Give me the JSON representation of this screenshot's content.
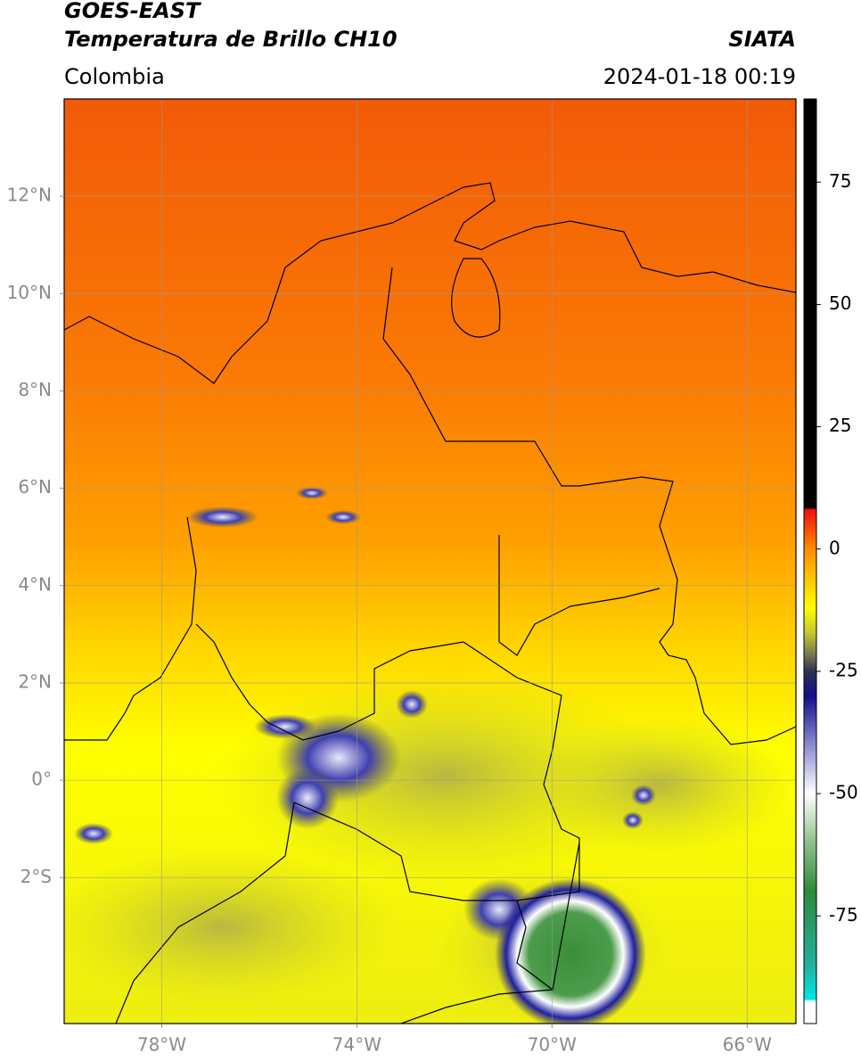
{
  "header": {
    "title_line1": "GOES-EAST",
    "title_line2": "Temperatura de Brillo CH10",
    "region": "Colombia",
    "source": "SIATA",
    "datetime": "2024-01-18 00:19"
  },
  "map": {
    "xlim": [
      -80,
      -65
    ],
    "ylim": [
      -5,
      14
    ],
    "xticks": [
      {
        "value": -78,
        "label": "78°W"
      },
      {
        "value": -74,
        "label": "74°W"
      },
      {
        "value": -70,
        "label": "70°W"
      },
      {
        "value": -66,
        "label": "66°W"
      }
    ],
    "yticks": [
      {
        "value": 12,
        "label": "12°N"
      },
      {
        "value": 10,
        "label": "10°N"
      },
      {
        "value": 8,
        "label": "8°N"
      },
      {
        "value": 6,
        "label": "6°N"
      },
      {
        "value": 4,
        "label": "4°N"
      },
      {
        "value": 2,
        "label": "2°N"
      },
      {
        "value": 0,
        "label": "0°"
      },
      {
        "value": -2,
        "label": "2°S"
      }
    ],
    "grid": true
  },
  "colorbar": {
    "lim": [
      -97,
      92
    ],
    "ticks": [
      75,
      50,
      25,
      0,
      -25,
      -50,
      -75
    ],
    "stops": [
      {
        "value": -97,
        "color": "#ffffff"
      },
      {
        "value": -92.5,
        "color": "#ffffff"
      },
      {
        "value": -92,
        "color": "#00e5e5"
      },
      {
        "value": -85,
        "color": "#22b0a0"
      },
      {
        "value": -70,
        "color": "#2e8b3a"
      },
      {
        "value": -60,
        "color": "#8fc08a"
      },
      {
        "value": -50,
        "color": "#ffffff"
      },
      {
        "value": -40,
        "color": "#8a8ad0"
      },
      {
        "value": -30,
        "color": "#10108a"
      },
      {
        "value": -25,
        "color": "#303050"
      },
      {
        "value": -22,
        "color": "#707050"
      },
      {
        "value": -17,
        "color": "#c8c830"
      },
      {
        "value": -12,
        "color": "#ffff00"
      },
      {
        "value": 0,
        "color": "#ff8c00"
      },
      {
        "value": 8,
        "color": "#ee1010"
      },
      {
        "value": 8.5,
        "color": "#000000"
      },
      {
        "value": 92,
        "color": "#000000"
      }
    ]
  }
}
